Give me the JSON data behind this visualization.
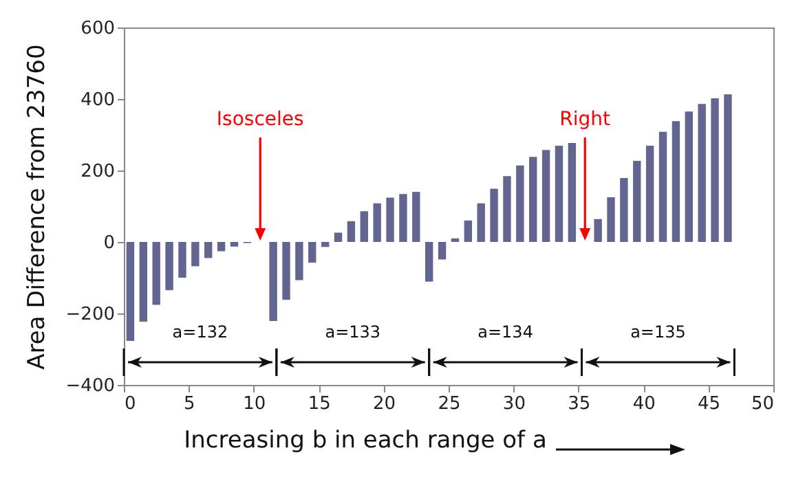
{
  "chart_data": {
    "type": "bar",
    "xlabel": "Increasing b in each range of a",
    "ylabel": "Area Difference from 23760",
    "x": [
      0.5,
      1.5,
      2.5,
      3.5,
      4.5,
      5.5,
      6.5,
      7.5,
      8.5,
      9.5,
      10.5,
      11.5,
      12.5,
      13.5,
      14.5,
      15.5,
      16.5,
      17.5,
      18.5,
      19.5,
      20.5,
      21.5,
      22.5,
      23.5,
      24.5,
      25.5,
      26.5,
      27.5,
      28.5,
      29.5,
      30.5,
      31.5,
      32.5,
      33.5,
      34.5,
      35.5,
      36.5,
      37.5,
      38.5,
      39.5,
      40.5,
      41.5,
      42.5,
      43.5,
      44.5,
      45.5,
      46.5
    ],
    "values": [
      -277,
      -223,
      -176,
      -135,
      -100,
      -68,
      -45,
      -26,
      -13,
      -3,
      0,
      -221,
      -162,
      -107,
      -58,
      -14,
      26,
      58,
      86,
      108,
      124,
      134,
      140,
      -111,
      -49,
      10,
      60,
      108,
      149,
      184,
      214,
      238,
      257,
      269,
      277,
      0,
      64,
      125,
      179,
      227,
      269,
      308,
      338,
      365,
      386,
      402,
      413
    ],
    "color": "#636591",
    "xlim": [
      0,
      50
    ],
    "xticks": [
      0,
      5,
      10,
      15,
      20,
      25,
      30,
      35,
      40,
      45,
      50
    ],
    "ylim": [
      -400,
      600
    ],
    "yticks": [
      -400,
      -200,
      0,
      200,
      400,
      600
    ],
    "grid": false,
    "annotations": [
      "Isosceles",
      "Right",
      "a=132",
      "a=133",
      "a=134",
      "a=135"
    ]
  }
}
